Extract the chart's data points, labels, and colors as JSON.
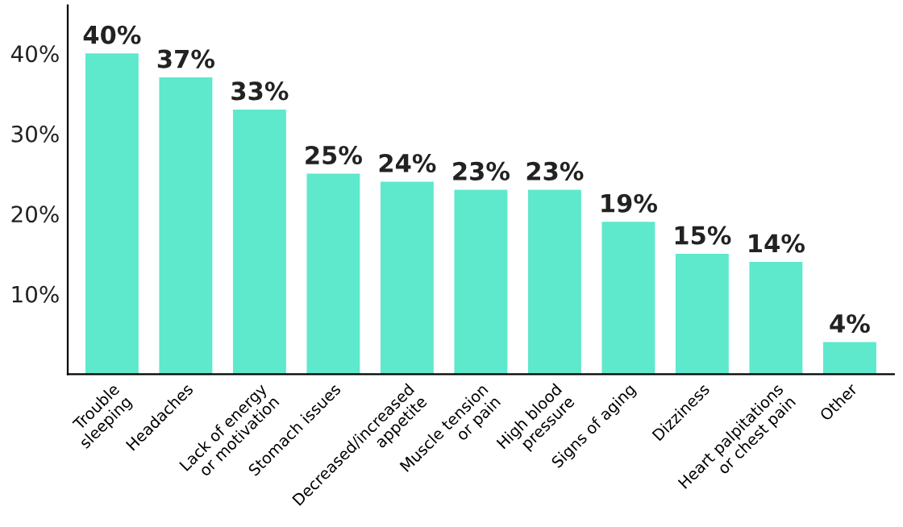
{
  "chart_data": {
    "type": "bar",
    "categories": [
      "Trouble\nsleeping",
      "Headaches",
      "Lack of energy\nor motivation",
      "Stomach issues",
      "Decreased/increased\nappetite",
      "Muscle tension\nor pain",
      "High blood\npressure",
      "Signs of aging",
      "Dizziness",
      "Heart palpitations\nor chest pain",
      "Other"
    ],
    "values": [
      40,
      37,
      33,
      25,
      24,
      23,
      23,
      19,
      15,
      14,
      4
    ],
    "value_labels": [
      "40%",
      "37%",
      "33%",
      "25%",
      "24%",
      "23%",
      "23%",
      "19%",
      "15%",
      "14%",
      "4%"
    ],
    "color": "#5ee8cc",
    "ylim": [
      0,
      46
    ],
    "yticks": [
      {
        "value": 10,
        "label": "10%"
      },
      {
        "value": 20,
        "label": "20%"
      },
      {
        "value": 30,
        "label": "30%"
      },
      {
        "value": 40,
        "label": "40%"
      }
    ],
    "grid": false,
    "legend": false
  }
}
